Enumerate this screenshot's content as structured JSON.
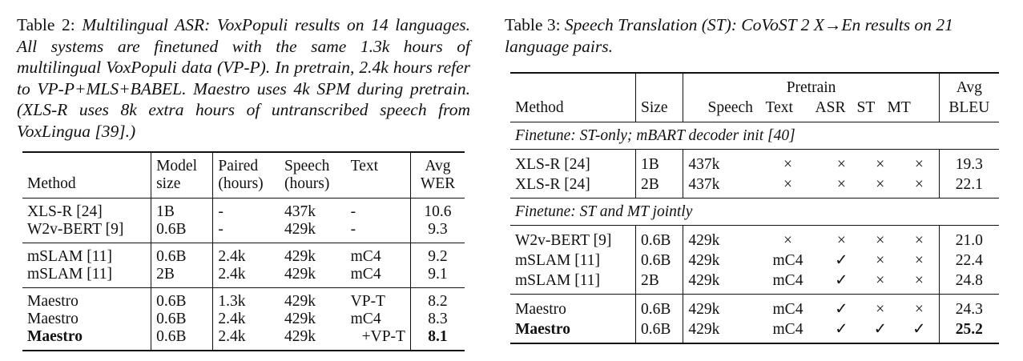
{
  "table2": {
    "caption_label": "Table 2:",
    "caption_text": "Multilingual ASR: VoxPopuli results on 14 languages. All systems are finetuned with the same 1.3k hours of multilingual VoxPopuli data (VP-P). In pretrain, 2.4k hours refer to VP-P+MLS+BABEL. Maestro uses 4k SPM during pretrain. (XLS-R uses 8k extra hours of untranscribed speech from VoxLingua [39].)",
    "headers": {
      "method": "Method",
      "model_size_1": "Model",
      "model_size_2": "size",
      "paired_1": "Paired",
      "paired_2": "(hours)",
      "speech_1": "Speech",
      "speech_2": "(hours)",
      "text": "Text",
      "wer_1": "Avg",
      "wer_2": "WER"
    },
    "rows": [
      [
        "XLS-R [24]",
        "1B",
        "-",
        "437k",
        "-",
        "10.6"
      ],
      [
        "W2v-BERT [9]",
        "0.6B",
        "-",
        "429k",
        "-",
        "9.3"
      ],
      [
        "mSLAM [11]",
        "0.6B",
        "2.4k",
        "429k",
        "mC4",
        "9.2"
      ],
      [
        "mSLAM [11]",
        "2B",
        "2.4k",
        "429k",
        "mC4",
        "9.1"
      ],
      [
        "Maestro",
        "0.6B",
        "1.3k",
        "429k",
        "VP-T",
        "8.2"
      ],
      [
        "Maestro",
        "0.6B",
        "2.4k",
        "429k",
        "mC4",
        "8.3"
      ],
      [
        "Maestro",
        "0.6B",
        "2.4k",
        "429k",
        "+VP-T",
        "8.1"
      ]
    ]
  },
  "table3": {
    "caption_label": "Table 3:",
    "caption_text": "Speech Translation (ST): CoVoST 2 X→En results on 21 language pairs.",
    "headers": {
      "pretrain": "Pretrain",
      "method": "Method",
      "size": "Size",
      "speech": "Speech",
      "text": "Text",
      "asr": "ASR",
      "st": "ST",
      "mt": "MT",
      "bleu_1": "Avg",
      "bleu_2": "BLEU"
    },
    "section1": "Finetune: ST-only; mBART decoder init [40]",
    "section2": "Finetune: ST and MT jointly",
    "rows": [
      [
        "XLS-R [24]",
        "1B",
        "437k",
        "×",
        "×",
        "×",
        "×",
        "19.3"
      ],
      [
        "XLS-R [24]",
        "2B",
        "437k",
        "×",
        "×",
        "×",
        "×",
        "22.1"
      ],
      [
        "W2v-BERT [9]",
        "0.6B",
        "429k",
        "×",
        "×",
        "×",
        "×",
        "21.0"
      ],
      [
        "mSLAM [11]",
        "0.6B",
        "429k",
        "mC4",
        "✓",
        "×",
        "×",
        "22.4"
      ],
      [
        "mSLAM [11]",
        "2B",
        "429k",
        "mC4",
        "✓",
        "×",
        "×",
        "24.8"
      ],
      [
        "Maestro",
        "0.6B",
        "429k",
        "mC4",
        "✓",
        "×",
        "×",
        "24.3"
      ],
      [
        "Maestro",
        "0.6B",
        "429k",
        "mC4",
        "✓",
        "✓",
        "✓",
        "25.2"
      ]
    ]
  }
}
